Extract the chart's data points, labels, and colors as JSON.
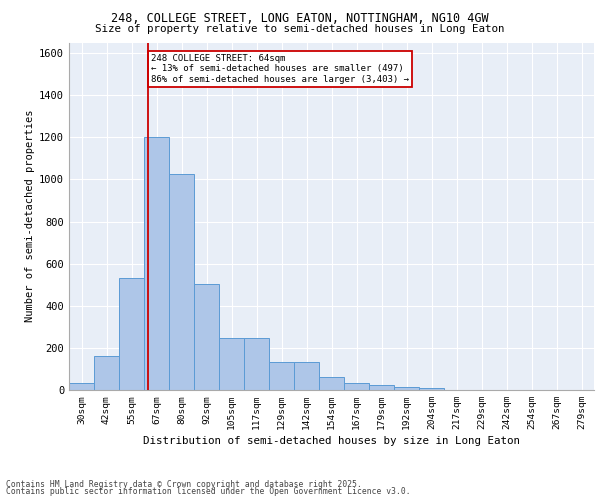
{
  "title1": "248, COLLEGE STREET, LONG EATON, NOTTINGHAM, NG10 4GW",
  "title2": "Size of property relative to semi-detached houses in Long Eaton",
  "xlabel": "Distribution of semi-detached houses by size in Long Eaton",
  "ylabel": "Number of semi-detached properties",
  "categories": [
    "30sqm",
    "42sqm",
    "55sqm",
    "67sqm",
    "80sqm",
    "92sqm",
    "105sqm",
    "117sqm",
    "129sqm",
    "142sqm",
    "154sqm",
    "167sqm",
    "179sqm",
    "192sqm",
    "204sqm",
    "217sqm",
    "229sqm",
    "242sqm",
    "254sqm",
    "267sqm",
    "279sqm"
  ],
  "values": [
    35,
    160,
    530,
    1200,
    1025,
    505,
    245,
    245,
    135,
    135,
    60,
    35,
    25,
    15,
    10,
    0,
    0,
    0,
    0,
    0,
    0
  ],
  "bar_color": "#aec6e8",
  "bar_edge_color": "#5b9bd5",
  "bar_width": 1.0,
  "ylim": [
    0,
    1650
  ],
  "yticks": [
    0,
    200,
    400,
    600,
    800,
    1000,
    1200,
    1400,
    1600
  ],
  "vline_x": 2.65,
  "vline_color": "#cc0000",
  "annotation_title": "248 COLLEGE STREET: 64sqm",
  "annotation_line1": "← 13% of semi-detached houses are smaller (497)",
  "annotation_line2": "86% of semi-detached houses are larger (3,403) →",
  "annotation_box_color": "#cc0000",
  "bg_color": "#e8eef7",
  "footer1": "Contains HM Land Registry data © Crown copyright and database right 2025.",
  "footer2": "Contains public sector information licensed under the Open Government Licence v3.0."
}
